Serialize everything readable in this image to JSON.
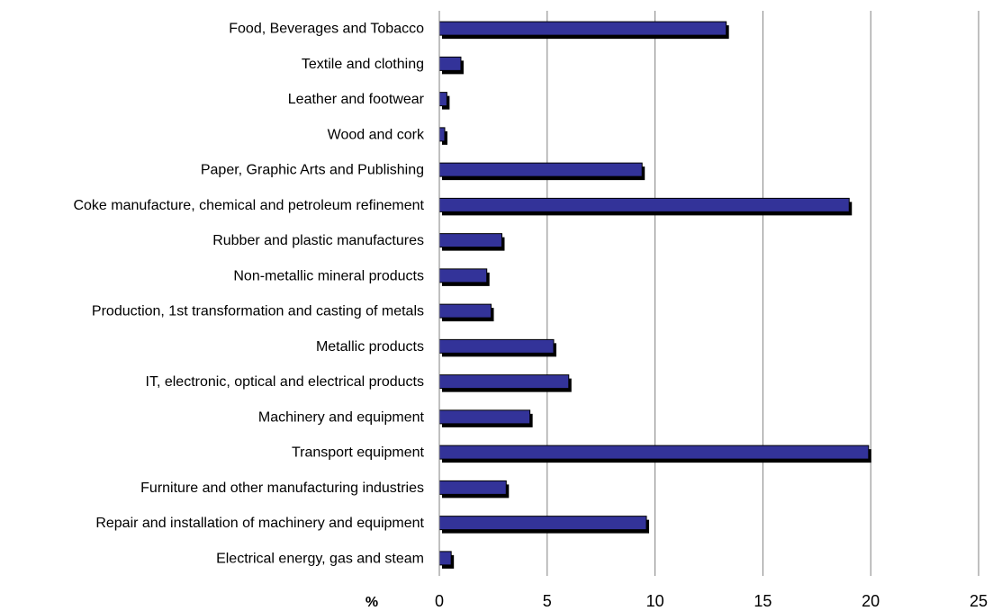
{
  "chart_data": {
    "type": "bar",
    "orientation": "horizontal",
    "categories": [
      "Food, Beverages and Tobacco",
      "Textile and clothing",
      "Leather and footwear",
      "Wood and cork",
      "Paper, Graphic Arts and Publishing",
      "Coke manufacture, chemical and petroleum refinement",
      "Rubber and plastic manufactures",
      "Non-metallic mineral products",
      "Production, 1st transformation and casting of metals",
      "Metallic products",
      "IT, electronic, optical and electrical products",
      "Machinery and equipment",
      "Transport equipment",
      "Furniture and other manufacturing industries",
      "Repair and installation of machinery and equipment",
      "Electrical energy, gas and steam"
    ],
    "values": [
      13.3,
      1.0,
      0.35,
      0.25,
      9.4,
      19.0,
      2.9,
      2.2,
      2.4,
      5.3,
      6.0,
      4.2,
      19.9,
      3.1,
      9.6,
      0.55
    ],
    "xlabel": "%",
    "ylabel": "",
    "xlim": [
      0,
      25
    ],
    "xticks": [
      0,
      5,
      10,
      15,
      20,
      25
    ],
    "grid": "vertical",
    "legend": "none",
    "bar_color": "#333399",
    "shadow_color": "#000000",
    "grid_color": "#808080"
  }
}
